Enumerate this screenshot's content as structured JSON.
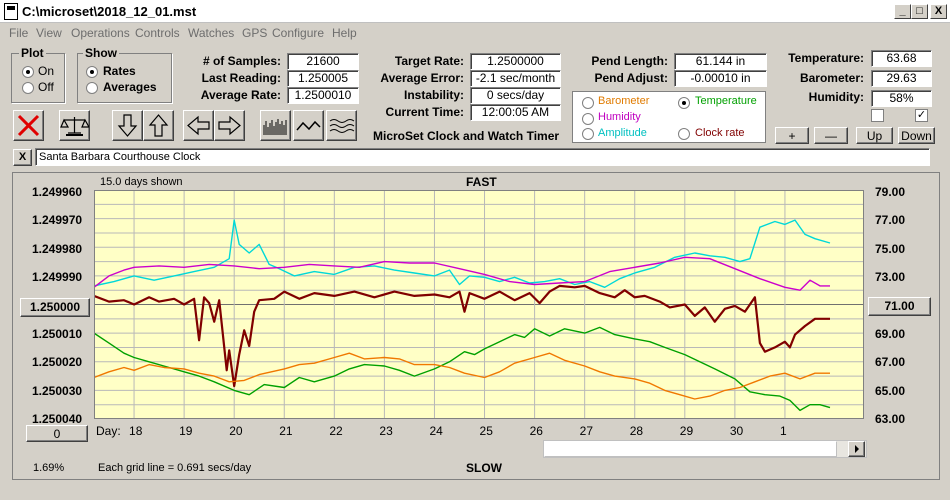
{
  "window": {
    "title": "C:\\microset\\2018_12_01.mst",
    "min_label": "_",
    "max_label": "□",
    "close_label": "X"
  },
  "menu": [
    "File",
    "View",
    "Operations",
    "Controls",
    "Watches",
    "GPS",
    "Configure",
    "Help"
  ],
  "plot_group": {
    "label": "Plot",
    "on": "On",
    "off": "Off",
    "selected": "On"
  },
  "show_group": {
    "label": "Show",
    "rates": "Rates",
    "averages": "Averages",
    "selected": "Rates"
  },
  "stats": {
    "samples_label": "# of Samples:",
    "samples": "21600",
    "last_label": "Last Reading:",
    "last": "1.250005",
    "avg_rate_label": "Average Rate:",
    "avg_rate": "1.2500010",
    "target_label": "Target Rate:",
    "target": "1.2500000",
    "avg_err_label": "Average Error:",
    "avg_err": "-2.1 sec/month",
    "instab_label": "Instability:",
    "instab": "0 secs/day",
    "time_label": "Current Time:",
    "time": "12:00:05 AM",
    "pend_len_label": "Pend Length:",
    "pend_len": "61.144 in",
    "pend_adj_label": "Pend Adjust:",
    "pend_adj": "-0.00010 in",
    "temp_label": "Temperature:",
    "temp": "63.68",
    "baro_label": "Barometer:",
    "baro": "29.63",
    "hum_label": "Humidity:",
    "hum": "58%"
  },
  "product_title": "MicroSet Clock and Watch Timer",
  "series_select": {
    "barometer": "Barometer",
    "temperature": "Temperature",
    "humidity": "Humidity",
    "amplitude": "Amplitude",
    "clock_rate": "Clock rate",
    "selected": "Temperature",
    "colors": {
      "barometer": "#e07b00",
      "temperature": "#00a000",
      "humidity": "#c000c0",
      "amplitude": "#00c0c0",
      "clock_rate": "#800000"
    }
  },
  "small_buttons": {
    "plus": "+",
    "minus": "—",
    "up": "Up",
    "down": "Down"
  },
  "clock_name": "Santa Barbara Courthouse Clock",
  "clear_label": "X",
  "graph": {
    "days_shown": "15.0 days shown",
    "fast": "FAST",
    "slow": "SLOW",
    "grid_note": "Each grid line = 0.691 secs/day",
    "percent": "1.69%",
    "day_label": "Day:",
    "left_center": "1.250000",
    "right_center": "71.00",
    "left_btn": "0"
  },
  "chart_data": {
    "type": "line",
    "x_label": "Day",
    "x_ticks": [
      "18",
      "19",
      "20",
      "21",
      "22",
      "23",
      "24",
      "25",
      "26",
      "27",
      "28",
      "29",
      "30",
      "1"
    ],
    "y_left_ticks": [
      "1.249960",
      "1.249970",
      "1.249980",
      "1.249990",
      "1.250000",
      "1.250010",
      "1.250020",
      "1.250030",
      "1.250040"
    ],
    "y_right_ticks": [
      "79.00",
      "77.00",
      "75.00",
      "73.00",
      "71.00",
      "69.00",
      "67.00",
      "65.00",
      "63.00"
    ],
    "ylim_right": [
      63,
      79
    ],
    "x_start_day": 17.2,
    "x_end_day": 31.9,
    "series": [
      {
        "name": "Clock rate",
        "color": "#800000",
        "points": [
          [
            17.2,
            71.6
          ],
          [
            17.5,
            71.2
          ],
          [
            17.8,
            71.3
          ],
          [
            18.0,
            71.0
          ],
          [
            18.3,
            71.5
          ],
          [
            18.5,
            71.2
          ],
          [
            18.8,
            71.4
          ],
          [
            19.0,
            71.0
          ],
          [
            19.2,
            71.4
          ],
          [
            19.3,
            68.5
          ],
          [
            19.4,
            71.5
          ],
          [
            19.5,
            71.1
          ],
          [
            19.6,
            69.8
          ],
          [
            19.7,
            71.3
          ],
          [
            19.85,
            66.4
          ],
          [
            19.9,
            67.8
          ],
          [
            20.0,
            65.3
          ],
          [
            20.1,
            67.5
          ],
          [
            20.2,
            69.2
          ],
          [
            20.3,
            68.1
          ],
          [
            20.4,
            70.5
          ],
          [
            20.5,
            71.3
          ],
          [
            20.8,
            71.4
          ],
          [
            21.0,
            71.9
          ],
          [
            21.3,
            71.4
          ],
          [
            21.6,
            71.8
          ],
          [
            22.0,
            71.6
          ],
          [
            22.4,
            71.9
          ],
          [
            22.8,
            71.5
          ],
          [
            23.2,
            71.9
          ],
          [
            23.6,
            71.6
          ],
          [
            24.0,
            71.7
          ],
          [
            24.3,
            71.5
          ],
          [
            24.5,
            71.9
          ],
          [
            24.6,
            70.5
          ],
          [
            24.7,
            71.8
          ],
          [
            25.0,
            71.4
          ],
          [
            25.3,
            71.9
          ],
          [
            25.6,
            71.3
          ],
          [
            25.9,
            71.8
          ],
          [
            26.1,
            71.1
          ],
          [
            26.3,
            71.9
          ],
          [
            26.5,
            72.3
          ],
          [
            26.8,
            72.2
          ],
          [
            27.0,
            72.3
          ],
          [
            27.3,
            71.8
          ],
          [
            27.6,
            71.5
          ],
          [
            27.8,
            72.0
          ],
          [
            28.0,
            71.5
          ],
          [
            28.2,
            71.6
          ],
          [
            28.5,
            71.2
          ],
          [
            28.7,
            70.8
          ],
          [
            29.0,
            71.0
          ],
          [
            29.2,
            70.2
          ],
          [
            29.4,
            70.8
          ],
          [
            29.6,
            69.8
          ],
          [
            29.8,
            70.7
          ],
          [
            30.0,
            70.9
          ],
          [
            30.2,
            70.5
          ],
          [
            30.4,
            71.5
          ],
          [
            30.5,
            68.3
          ],
          [
            30.6,
            67.7
          ],
          [
            30.8,
            68.0
          ],
          [
            31.0,
            68.4
          ],
          [
            31.1,
            68.0
          ],
          [
            31.2,
            68.9
          ],
          [
            31.4,
            69.5
          ],
          [
            31.6,
            70.0
          ],
          [
            31.9,
            70.0
          ]
        ]
      },
      {
        "name": "Amplitude",
        "color": "#00d8d8",
        "points": [
          [
            17.2,
            72.3
          ],
          [
            17.6,
            72.6
          ],
          [
            18.0,
            73.0
          ],
          [
            18.4,
            72.7
          ],
          [
            18.8,
            73.0
          ],
          [
            19.2,
            73.3
          ],
          [
            19.6,
            73.6
          ],
          [
            19.9,
            74.2
          ],
          [
            20.0,
            76.9
          ],
          [
            20.1,
            75.2
          ],
          [
            20.3,
            74.6
          ],
          [
            20.5,
            75.2
          ],
          [
            20.7,
            73.8
          ],
          [
            20.9,
            73.5
          ],
          [
            21.2,
            73.0
          ],
          [
            21.6,
            73.3
          ],
          [
            22.0,
            73.1
          ],
          [
            22.4,
            73.6
          ],
          [
            22.8,
            73.7
          ],
          [
            23.2,
            73.4
          ],
          [
            23.6,
            73.2
          ],
          [
            24.0,
            73.0
          ],
          [
            24.3,
            73.4
          ],
          [
            24.5,
            72.4
          ],
          [
            24.7,
            73.0
          ],
          [
            25.0,
            72.9
          ],
          [
            25.3,
            72.6
          ],
          [
            25.6,
            72.9
          ],
          [
            25.9,
            72.5
          ],
          [
            26.2,
            72.6
          ],
          [
            26.5,
            72.8
          ],
          [
            26.8,
            72.4
          ],
          [
            27.1,
            72.6
          ],
          [
            27.4,
            72.2
          ],
          [
            27.7,
            72.8
          ],
          [
            28.0,
            73.2
          ],
          [
            28.4,
            73.6
          ],
          [
            28.8,
            74.3
          ],
          [
            29.2,
            74.6
          ],
          [
            29.5,
            74.4
          ],
          [
            29.8,
            74.3
          ],
          [
            30.1,
            74.0
          ],
          [
            30.3,
            74.2
          ],
          [
            30.5,
            76.4
          ],
          [
            30.8,
            76.8
          ],
          [
            31.0,
            76.6
          ],
          [
            31.2,
            76.9
          ],
          [
            31.4,
            75.9
          ],
          [
            31.6,
            75.6
          ],
          [
            31.9,
            75.3
          ]
        ]
      },
      {
        "name": "Humidity",
        "color": "#cc00cc",
        "points": [
          [
            17.2,
            72.2
          ],
          [
            17.5,
            73.0
          ],
          [
            17.8,
            73.4
          ],
          [
            18.0,
            73.6
          ],
          [
            18.5,
            73.7
          ],
          [
            19.0,
            73.6
          ],
          [
            19.5,
            73.8
          ],
          [
            20.0,
            73.7
          ],
          [
            20.5,
            73.5
          ],
          [
            21.0,
            73.6
          ],
          [
            21.5,
            73.8
          ],
          [
            22.0,
            73.7
          ],
          [
            22.5,
            73.6
          ],
          [
            23.0,
            74.0
          ],
          [
            23.5,
            73.9
          ],
          [
            24.0,
            73.9
          ],
          [
            24.5,
            73.5
          ],
          [
            25.0,
            73.1
          ],
          [
            25.5,
            72.6
          ],
          [
            26.0,
            72.4
          ],
          [
            26.5,
            72.5
          ],
          [
            27.0,
            72.6
          ],
          [
            27.5,
            73.3
          ],
          [
            28.0,
            73.6
          ],
          [
            28.5,
            73.9
          ],
          [
            29.0,
            74.3
          ],
          [
            29.5,
            74.2
          ],
          [
            30.0,
            73.5
          ],
          [
            30.5,
            72.8
          ],
          [
            31.0,
            72.2
          ],
          [
            31.3,
            72.0
          ],
          [
            31.5,
            72.7
          ],
          [
            31.7,
            72.3
          ],
          [
            31.9,
            72.3
          ]
        ]
      },
      {
        "name": "Temperature",
        "color": "#00a000",
        "points": [
          [
            17.2,
            69.0
          ],
          [
            17.5,
            68.3
          ],
          [
            17.8,
            67.6
          ],
          [
            18.0,
            67.3
          ],
          [
            18.3,
            67.0
          ],
          [
            18.7,
            66.6
          ],
          [
            19.0,
            66.3
          ],
          [
            19.3,
            66.0
          ],
          [
            19.6,
            65.6
          ],
          [
            20.0,
            65.0
          ],
          [
            20.3,
            64.7
          ],
          [
            20.6,
            65.4
          ],
          [
            21.0,
            65.2
          ],
          [
            21.3,
            65.9
          ],
          [
            21.6,
            65.6
          ],
          [
            22.0,
            66.0
          ],
          [
            22.3,
            66.5
          ],
          [
            22.6,
            66.8
          ],
          [
            23.0,
            66.7
          ],
          [
            23.3,
            66.4
          ],
          [
            23.6,
            66.0
          ],
          [
            24.0,
            66.5
          ],
          [
            24.3,
            67.0
          ],
          [
            24.6,
            67.7
          ],
          [
            24.8,
            67.5
          ],
          [
            25.0,
            67.9
          ],
          [
            25.3,
            68.4
          ],
          [
            25.6,
            68.9
          ],
          [
            25.8,
            68.7
          ],
          [
            26.0,
            69.3
          ],
          [
            26.3,
            68.8
          ],
          [
            26.6,
            69.3
          ],
          [
            27.0,
            69.0
          ],
          [
            27.3,
            69.4
          ],
          [
            27.6,
            68.9
          ],
          [
            28.0,
            68.6
          ],
          [
            28.3,
            68.4
          ],
          [
            28.6,
            68.0
          ],
          [
            29.0,
            67.5
          ],
          [
            29.3,
            67.0
          ],
          [
            29.6,
            66.5
          ],
          [
            30.0,
            65.8
          ],
          [
            30.3,
            64.9
          ],
          [
            30.6,
            64.7
          ],
          [
            30.9,
            64.6
          ],
          [
            31.1,
            64.3
          ],
          [
            31.3,
            63.6
          ],
          [
            31.5,
            64.0
          ],
          [
            31.7,
            64.0
          ],
          [
            31.9,
            63.8
          ]
        ]
      },
      {
        "name": "Barometer",
        "color": "#f07800",
        "points": [
          [
            17.2,
            65.9
          ],
          [
            17.5,
            66.3
          ],
          [
            17.8,
            66.6
          ],
          [
            18.0,
            66.4
          ],
          [
            18.3,
            66.8
          ],
          [
            18.6,
            66.6
          ],
          [
            19.0,
            66.5
          ],
          [
            19.3,
            66.2
          ],
          [
            19.6,
            66.0
          ],
          [
            19.9,
            65.6
          ],
          [
            20.2,
            65.7
          ],
          [
            20.5,
            66.1
          ],
          [
            21.0,
            66.5
          ],
          [
            21.3,
            66.8
          ],
          [
            21.6,
            66.9
          ],
          [
            22.0,
            67.3
          ],
          [
            22.3,
            67.6
          ],
          [
            22.6,
            67.2
          ],
          [
            23.0,
            67.3
          ],
          [
            23.3,
            67.2
          ],
          [
            23.6,
            66.8
          ],
          [
            24.0,
            66.8
          ],
          [
            24.3,
            66.6
          ],
          [
            24.6,
            66.2
          ],
          [
            25.0,
            65.9
          ],
          [
            25.3,
            66.3
          ],
          [
            25.6,
            66.9
          ],
          [
            26.0,
            67.3
          ],
          [
            26.3,
            67.6
          ],
          [
            26.6,
            67.1
          ],
          [
            27.0,
            66.7
          ],
          [
            27.3,
            66.3
          ],
          [
            27.6,
            66.0
          ],
          [
            28.0,
            65.8
          ],
          [
            28.3,
            65.5
          ],
          [
            28.6,
            65.0
          ],
          [
            28.9,
            64.7
          ],
          [
            29.2,
            64.4
          ],
          [
            29.5,
            64.6
          ],
          [
            29.8,
            65.0
          ],
          [
            30.1,
            65.2
          ],
          [
            30.4,
            65.6
          ],
          [
            30.7,
            66.0
          ],
          [
            31.0,
            66.2
          ],
          [
            31.3,
            65.8
          ],
          [
            31.6,
            66.2
          ],
          [
            31.9,
            66.2
          ]
        ]
      }
    ]
  }
}
